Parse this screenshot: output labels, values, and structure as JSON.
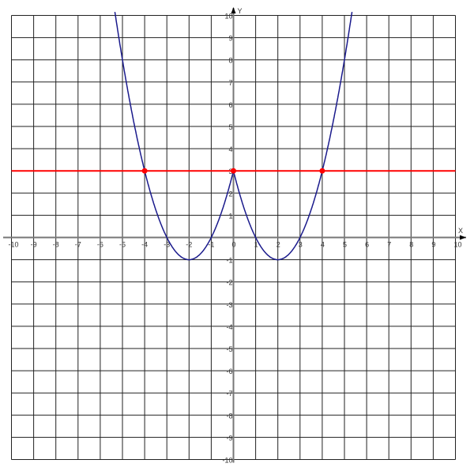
{
  "chart_data": {
    "type": "line",
    "xlabel": "X",
    "ylabel": "Y",
    "xlim": [
      -10,
      10
    ],
    "ylim": [
      -10,
      10
    ],
    "grid": true,
    "xticks": [
      -10,
      -9,
      -8,
      -7,
      -6,
      -5,
      -4,
      -3,
      -2,
      -1,
      0,
      1,
      2,
      3,
      4,
      5,
      6,
      7,
      8,
      9,
      10
    ],
    "yticks": [
      -10,
      -9,
      -8,
      -7,
      -6,
      -5,
      -4,
      -3,
      -2,
      -1,
      1,
      2,
      3,
      4,
      5,
      6,
      7,
      8,
      9,
      10
    ],
    "series": [
      {
        "expression": "y = x^2 - 4|x| + 3",
        "color": "#1a1a8c"
      },
      {
        "expression": "y = 3",
        "color": "#ff0000"
      }
    ],
    "points": [
      {
        "x": -4,
        "y": 3,
        "color": "#ff0000"
      },
      {
        "x": 0,
        "y": 3,
        "color": "#ff0000"
      },
      {
        "x": 4,
        "y": 3,
        "color": "#ff0000"
      }
    ]
  }
}
